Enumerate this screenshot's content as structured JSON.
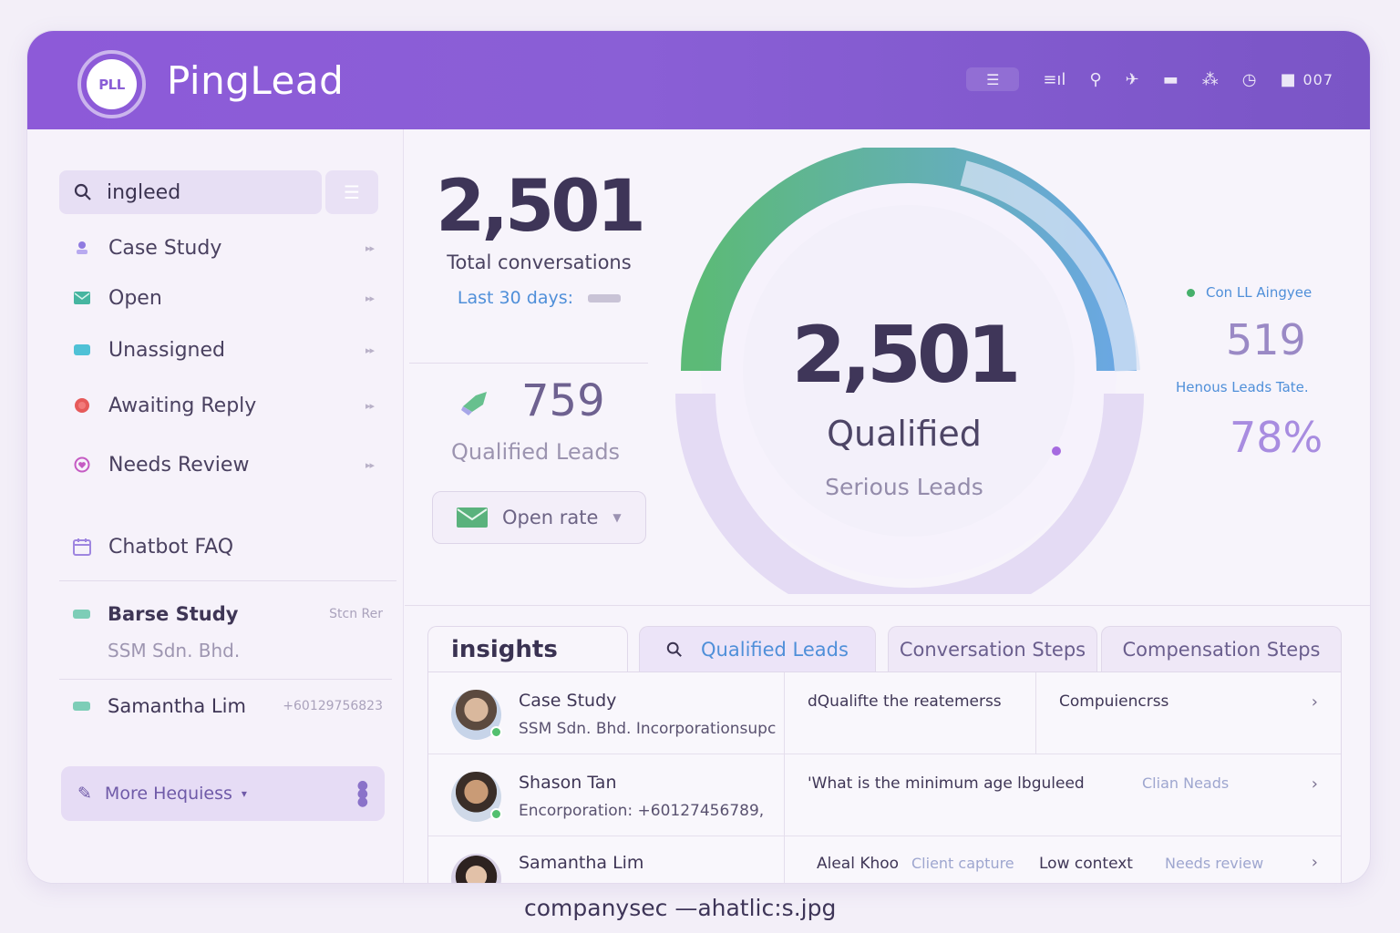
{
  "app": {
    "logo_text": "PLL",
    "name": "PingLead"
  },
  "topbar": {
    "badge_count": "007"
  },
  "sidebar": {
    "search_value": "ingleed",
    "nav_items": [
      {
        "label": "Case Study",
        "icon": "user-pin-icon",
        "color": "#8f7ae0"
      },
      {
        "label": "Open",
        "icon": "mail-icon",
        "color": "#46b5a0"
      },
      {
        "label": "Unassigned",
        "icon": "tag-icon",
        "color": "#4fc1d6"
      },
      {
        "label": "Awaiting Reply",
        "icon": "red-dot-icon",
        "color": "#e65a5a"
      },
      {
        "label": "Needs Review",
        "icon": "heart-icon",
        "color": "#c55bc3"
      },
      {
        "label": "Chatbot FAQ",
        "icon": "calendar-icon",
        "color": "#9f86e0"
      }
    ],
    "contacts": [
      {
        "name": "Barse Study",
        "meta": "Stcn Rer",
        "sub": "SSM Sdn. Bhd."
      },
      {
        "name": "Samantha Lim",
        "meta": "+60129756823"
      }
    ],
    "more_button": "More Hequiess"
  },
  "stats": {
    "total": "2,501",
    "total_label": "Total conversations",
    "period": "Last 30 days:",
    "qualified": "759",
    "qualified_label": "Qualified Leads",
    "open_rate_label": "Open rate"
  },
  "gauge": {
    "value": "2,501",
    "label": "Qualified",
    "sublabel": "Serious Leads",
    "fill_fraction": 0.5,
    "colors": {
      "start": "#5cba77",
      "end": "#6aa7e3",
      "track": "#e4dbf4"
    }
  },
  "side_stats": {
    "legend": "Con LL Aingyee",
    "count": "519",
    "rate_label": "Henous Leads Tate.",
    "rate": "78%"
  },
  "insights": {
    "title": "insights",
    "tabs": [
      "Qualified Leads",
      "Conversation Steps",
      "Compensation Steps"
    ],
    "rows": [
      {
        "name": "Case Study",
        "sub": "SSM Sdn. Bhd.  Incorporationsupc",
        "col1": "dQualifte the reatemerss",
        "col2": "Compuiencrss"
      },
      {
        "name": "Shason Tan",
        "sub": "Encorporation:  +60127456789,",
        "col1": "'What is the minimum age lbguleed",
        "col2": "Clian Neads"
      },
      {
        "name": "Samantha Lim",
        "sub": "",
        "col1": "Aleal Khoo",
        "col2": "Client capture",
        "col3": "Low context",
        "col4": "Needs review"
      }
    ]
  },
  "footer": {
    "caption": "companysec —ahatlic:s.jpg"
  }
}
